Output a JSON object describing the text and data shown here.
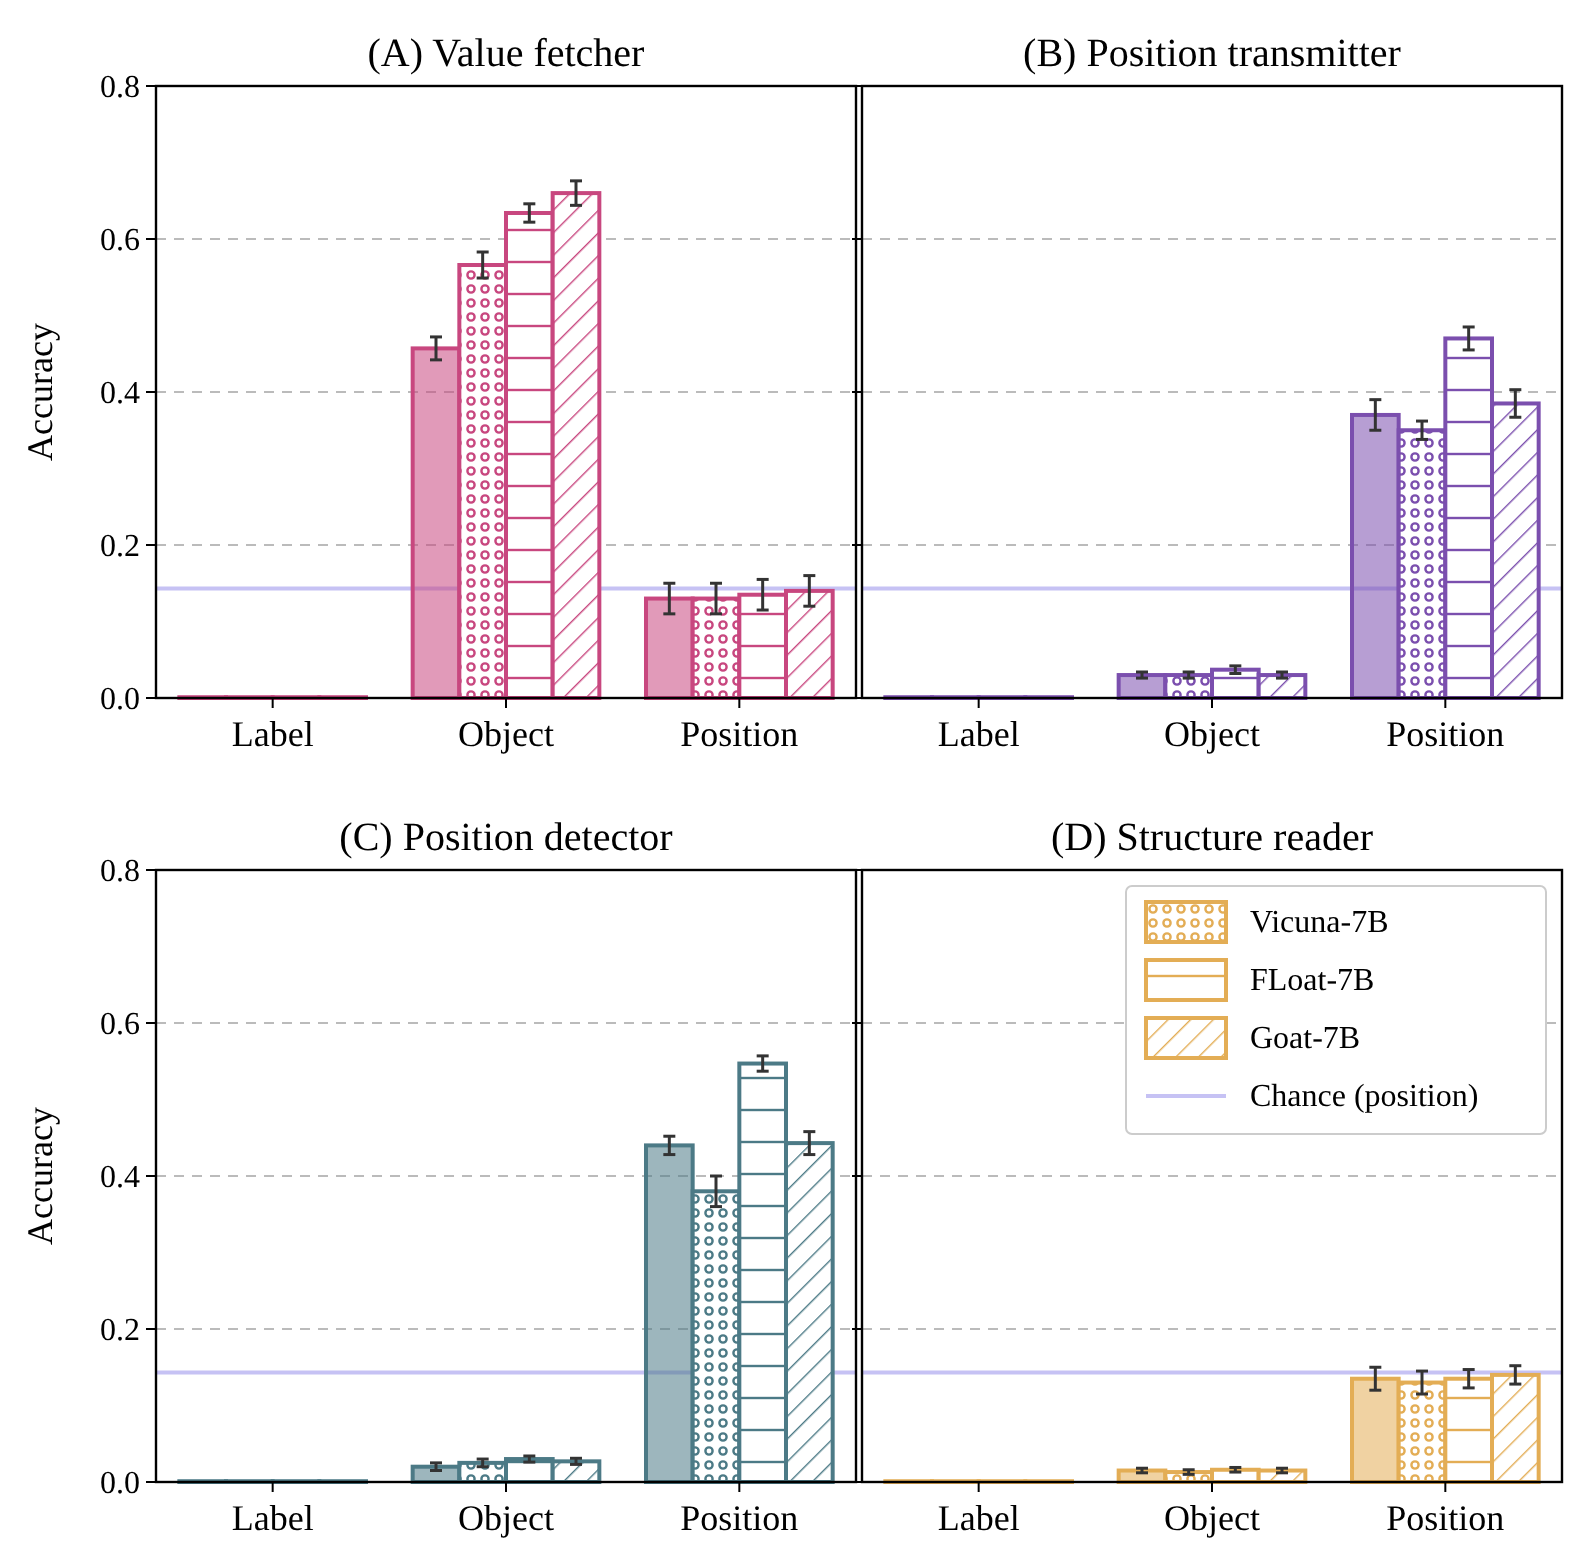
{
  "chart_data": [
    {
      "type": "bar",
      "title": "(A) Value fetcher",
      "ylabel": "Accuracy",
      "categories": [
        "Label",
        "Object",
        "Position"
      ],
      "ylim": [
        0,
        0.8
      ],
      "yticks": [
        {
          "value": 0,
          "label": "0.0"
        },
        0.2,
        0.4,
        0.6,
        0.8
      ],
      "grid": "y",
      "legend": false,
      "ref_lines": [
        {
          "axis": "y",
          "value": 0.143,
          "color": "#c6c2f4"
        }
      ],
      "series": [
        {
          "color": "#c8477f",
          "values": [
            0.001,
            0.457,
            0.13
          ],
          "errors": [
            null,
            0.015,
            0.02
          ]
        },
        {
          "color": "#c8477f",
          "values": [
            0.001,
            0.566,
            0.13
          ],
          "errors": [
            null,
            0.017,
            0.02
          ]
        },
        {
          "color": "#c8477f",
          "values": [
            0.001,
            0.634,
            0.135
          ],
          "errors": [
            null,
            0.012,
            0.02
          ]
        },
        {
          "color": "#c8477f",
          "values": [
            0.001,
            0.66,
            0.14
          ],
          "errors": [
            null,
            0.016,
            0.02
          ]
        }
      ]
    },
    {
      "type": "bar",
      "title": "(B) Position transmitter",
      "categories": [
        "Label",
        "Object",
        "Position"
      ],
      "ylim": [
        0,
        0.8
      ],
      "yticks": [
        0,
        0.2,
        0.4,
        0.6,
        0.8
      ],
      "grid": "y",
      "legend": false,
      "tick_labels": "x",
      "ref_lines": [
        {
          "axis": "y",
          "value": 0.143,
          "color": "#c6c2f4"
        }
      ],
      "series": [
        {
          "color": "#7b4fae",
          "values": [
            0.001,
            0.03,
            0.37
          ],
          "errors": [
            null,
            0.004,
            0.02
          ]
        },
        {
          "color": "#7b4fae",
          "values": [
            0.001,
            0.03,
            0.35
          ],
          "errors": [
            null,
            0.004,
            0.012
          ]
        },
        {
          "color": "#7b4fae",
          "values": [
            0.001,
            0.037,
            0.47
          ],
          "errors": [
            null,
            0.005,
            0.015
          ]
        },
        {
          "color": "#7b4fae",
          "values": [
            0.001,
            0.03,
            0.385
          ],
          "errors": [
            null,
            0.004,
            0.018
          ]
        }
      ]
    },
    {
      "type": "bar",
      "title": "(C) Position detector",
      "ylabel": "Accuracy",
      "categories": [
        "Label",
        "Object",
        "Position"
      ],
      "ylim": [
        0,
        0.8
      ],
      "yticks": [
        {
          "value": 0,
          "label": "0.0"
        },
        0.2,
        0.4,
        0.6,
        0.8
      ],
      "grid": "y",
      "legend": false,
      "ref_lines": [
        {
          "axis": "y",
          "value": 0.143,
          "color": "#c6c2f4"
        }
      ],
      "series": [
        {
          "color": "#4c7a86",
          "values": [
            0.001,
            0.02,
            0.44
          ],
          "errors": [
            null,
            0.005,
            0.012
          ]
        },
        {
          "color": "#4c7a86",
          "values": [
            0.001,
            0.025,
            0.38
          ],
          "errors": [
            null,
            0.005,
            0.02
          ]
        },
        {
          "color": "#4c7a86",
          "values": [
            0.001,
            0.03,
            0.547
          ],
          "errors": [
            null,
            0.004,
            0.01
          ]
        },
        {
          "color": "#4c7a86",
          "values": [
            0.001,
            0.027,
            0.443
          ],
          "errors": [
            null,
            0.004,
            0.015
          ]
        }
      ]
    },
    {
      "type": "bar",
      "title": "(D) Structure reader",
      "categories": [
        "Label",
        "Object",
        "Position"
      ],
      "ylim": [
        0,
        0.8
      ],
      "yticks": [
        0,
        0.2,
        0.4,
        0.6,
        0.8
      ],
      "grid": "y",
      "legend": "top right",
      "tick_labels": "x",
      "ref_lines": [
        {
          "axis": "y",
          "value": 0.143,
          "label": "Chance (position)",
          "color": "#c6c2f4"
        }
      ],
      "series": [
        {
          "color": "#e3ad55",
          "values": [
            0.001,
            0.015,
            0.135
          ],
          "errors": [
            null,
            0.003,
            0.015
          ]
        },
        {
          "name": "Vicuna-7B",
          "color": "#e3ad55",
          "values": [
            0.001,
            0.013,
            0.13
          ],
          "errors": [
            null,
            0.003,
            0.015
          ]
        },
        {
          "name": "FLoat-7B",
          "color": "#e3ad55",
          "values": [
            0.001,
            0.016,
            0.135
          ],
          "errors": [
            null,
            0.003,
            0.012
          ]
        },
        {
          "name": "Goat-7B",
          "color": "#e3ad55",
          "values": [
            0.001,
            0.015,
            0.14
          ],
          "errors": [
            null,
            0.003,
            0.012
          ]
        }
      ]
    }
  ]
}
